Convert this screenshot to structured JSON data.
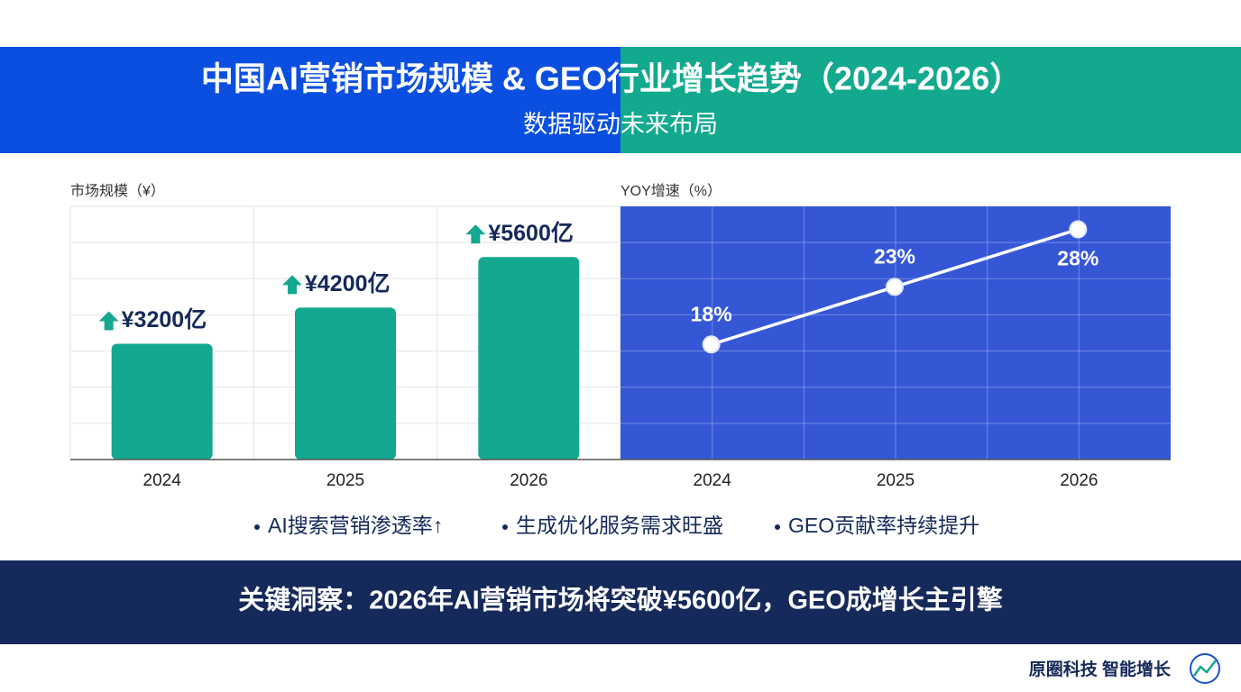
{
  "header": {
    "title": "中国AI营销市场规模 & GEO行业增长趋势（2024-2026）",
    "subtitle": "数据驱动未来布局"
  },
  "chart_data": [
    {
      "type": "bar",
      "y_label": "市场规模（¥）",
      "categories": [
        "2024",
        "2025",
        "2026"
      ],
      "values": [
        3200,
        4200,
        5600
      ],
      "value_labels": [
        "¥3200亿",
        "¥4200亿",
        "¥5600亿"
      ],
      "color": "#13a88f",
      "ylim": [
        0,
        7000
      ],
      "grid": true
    },
    {
      "type": "line",
      "y_label": "YOY增速（%）",
      "categories": [
        "2024",
        "2025",
        "2026"
      ],
      "values": [
        18,
        23,
        28
      ],
      "value_labels": [
        "18%",
        "23%",
        "28%"
      ],
      "color": "#ffffff",
      "ylim": [
        8,
        30
      ],
      "grid": true
    }
  ],
  "bullets": [
    "AI搜索营销渗透率↑",
    "生成优化服务需求旺盛",
    "GEO贡献率持续提升"
  ],
  "insight": "关键洞察：2026年AI营销市场将突破¥5600亿，GEO成增长主引擎",
  "footer": {
    "brand": "原圈科技 智能增长"
  }
}
